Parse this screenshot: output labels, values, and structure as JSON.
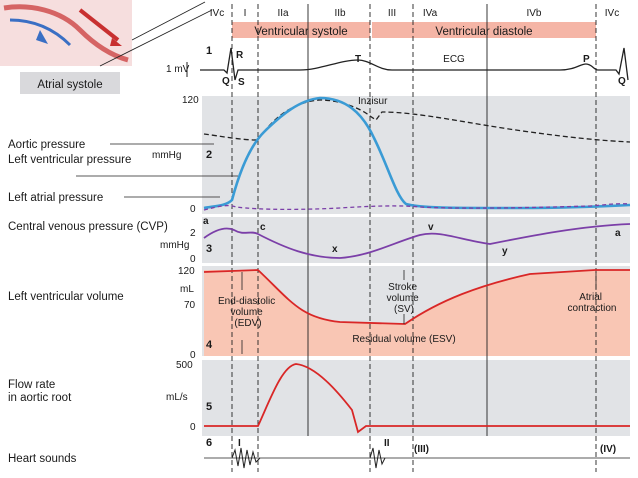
{
  "phases": [
    "IVc",
    "I",
    "IIa",
    "IIb",
    "III",
    "IVa",
    "IVb",
    "IVc"
  ],
  "systole_label": "Ventricular systole",
  "diastole_label": "Ventricular diastole",
  "inset_caption": "Atrial systole",
  "panel_numbers": [
    "1",
    "2",
    "3",
    "4",
    "5",
    "6"
  ],
  "ecg": {
    "mv_label": "1 mV",
    "title": "ECG",
    "waves": [
      "Q",
      "R",
      "S",
      "T",
      "P",
      "Q"
    ]
  },
  "pressure": {
    "unit": "mmHg",
    "ticks": [
      "120",
      "0"
    ],
    "labels": [
      "Aortic pressure",
      "Left ventricular pressure",
      "Left atrial pressure"
    ],
    "incisura": "Inzisur"
  },
  "cvp": {
    "label": "Central venous pressure (CVP)",
    "unit": "mmHg",
    "ticks": [
      "2",
      "0"
    ],
    "waves": [
      "a",
      "c",
      "x",
      "v",
      "y",
      "a"
    ]
  },
  "volume": {
    "label": "Left ventricular volume",
    "unit": "mL",
    "ticks": [
      "120",
      "70",
      "0"
    ],
    "edv": "End-diastolic volume (EDV)",
    "sv": "Stroke volume (SV)",
    "esv": "Residual volume (ESV)",
    "atrial": "Atrial contraction"
  },
  "flow": {
    "label": "Flow rate in aortic root",
    "unit": "mL/s",
    "ticks": [
      "500",
      "0"
    ]
  },
  "sounds": {
    "label": "Heart sounds",
    "marks": [
      "I",
      "II",
      "(III)",
      "(IV)"
    ]
  },
  "colors": {
    "band": "#f5b5a6",
    "panel": "#e1e3e6",
    "blue": "#3a9bd5",
    "purple": "#7b3fa8",
    "red": "#d92727",
    "volfill": "#f9c6b4"
  }
}
